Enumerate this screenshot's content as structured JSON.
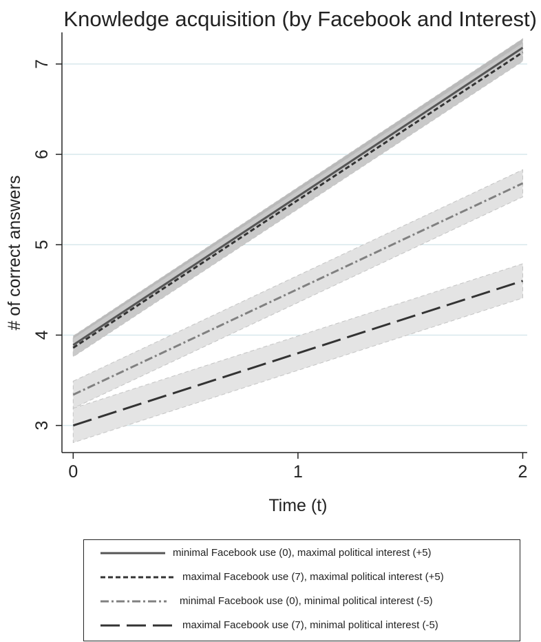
{
  "chart_data": {
    "type": "line",
    "title": "Knowledge acquisition (by Facebook and Interest)",
    "xlabel": "Time (t)",
    "ylabel": "# of correct answers",
    "xlim": [
      -0.05,
      2.02
    ],
    "ylim": [
      2.7,
      7.35
    ],
    "xticks": [
      0,
      1,
      2
    ],
    "yticks": [
      3,
      4,
      5,
      6,
      7
    ],
    "grid": "horizontal",
    "legend_position": "bottom",
    "series": [
      {
        "name": "minimal Facebook use (0), maximal political interest (+5)",
        "style": "solid",
        "color": "#555555",
        "band_color": "#b9b9b9",
        "x": [
          0,
          2
        ],
        "values": [
          3.89,
          7.18
        ],
        "ci_width": 0.1
      },
      {
        "name": "maximal Facebook use (7), maximal political interest (+5)",
        "style": "dashed",
        "color": "#333333",
        "band_color": "#c9c9c9",
        "x": [
          0,
          2
        ],
        "values": [
          3.86,
          7.13
        ],
        "ci_width": 0.1
      },
      {
        "name": "minimal Facebook use (0), minimal political interest (-5)",
        "style": "dashdot",
        "color": "#808080",
        "band_color": "#e2e2e2",
        "x": [
          0,
          2
        ],
        "values": [
          3.34,
          5.68
        ],
        "ci_width": 0.15
      },
      {
        "name": "maximal Facebook use (7), minimal political interest (-5)",
        "style": "longdash",
        "color": "#333333",
        "band_color": "#e4e4e4",
        "x": [
          0,
          2
        ],
        "values": [
          3.0,
          4.6
        ],
        "ci_width": 0.19
      }
    ]
  }
}
